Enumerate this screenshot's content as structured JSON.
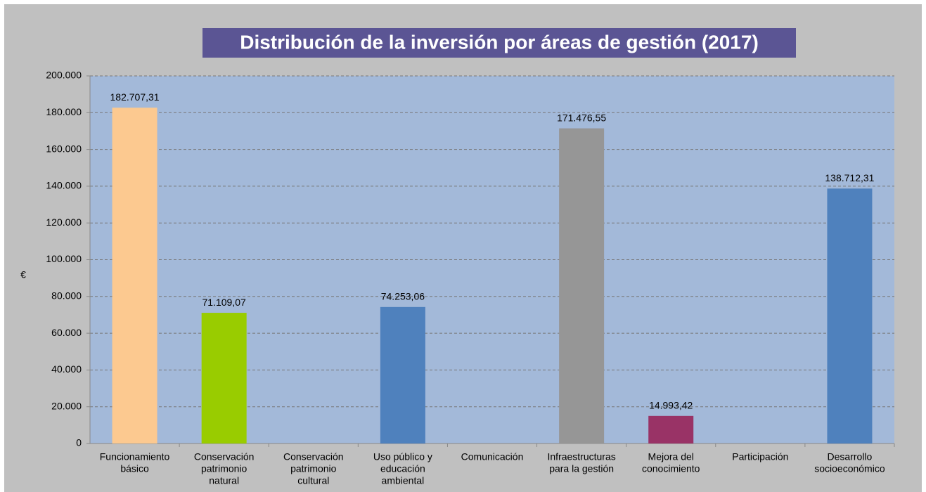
{
  "chart_data": {
    "type": "bar",
    "title": "Distribución de la inversión por áreas de gestión (2017)",
    "ylabel": "€",
    "categories": [
      [
        "Funcionamiento",
        "básico"
      ],
      [
        "Conservación",
        "patrimonio",
        "natural"
      ],
      [
        "Conservación",
        "patrimonio",
        "cultural"
      ],
      [
        "Uso público y",
        "educación",
        "ambiental"
      ],
      [
        "Comunicación"
      ],
      [
        "Infraestructuras",
        "para la gestión"
      ],
      [
        "Mejora del",
        "conocimiento"
      ],
      [
        "Participación"
      ],
      [
        "Desarrollo",
        "socioeconómico"
      ]
    ],
    "values": [
      182707.31,
      71109.07,
      null,
      74253.06,
      null,
      171476.55,
      14993.42,
      null,
      138712.31
    ],
    "value_labels": [
      "182.707,31",
      "71.109,07",
      null,
      "74.253,06",
      null,
      "171.476,55",
      "14.993,42",
      null,
      "138.712,31"
    ],
    "colors": [
      "#fcc990",
      "#99cc00",
      null,
      "#4f81bd",
      null,
      "#969696",
      "#993366",
      null,
      "#4f81bd"
    ],
    "ylim": [
      0,
      200000
    ],
    "yticks": [
      0,
      {
        "value": 20000,
        "label": "20.000"
      },
      {
        "value": 40000,
        "label": "40.000"
      },
      {
        "value": 60000,
        "label": "60.000"
      },
      {
        "value": 80000,
        "label": "80.000"
      },
      {
        "value": 100000,
        "label": "100.000"
      },
      {
        "value": 120000,
        "label": "120.000"
      },
      {
        "value": 140000,
        "label": "140.000"
      },
      {
        "value": 160000,
        "label": "160.000"
      },
      {
        "value": 180000,
        "label": "180.000"
      },
      {
        "value": 200000,
        "label": "200.000"
      }
    ],
    "grid": true
  }
}
